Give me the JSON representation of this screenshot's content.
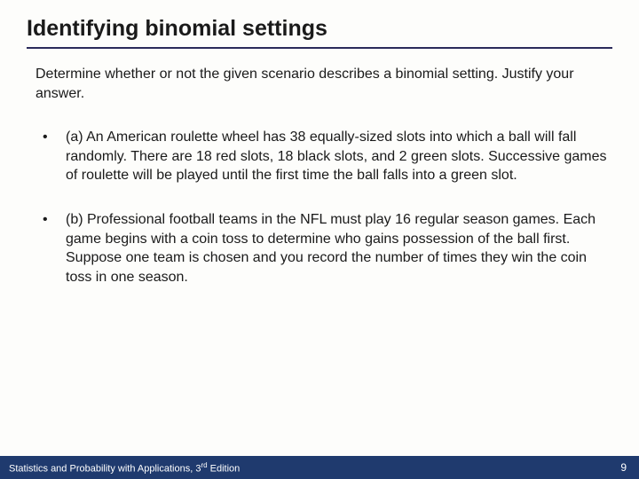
{
  "colors": {
    "title_underline": "#2a2a5a",
    "text": "#1a1a1a",
    "footer_bg": "#1f3a6e",
    "footer_text": "#ffffff",
    "page_bg": "#fdfdfb"
  },
  "typography": {
    "title_fontsize": 25,
    "title_weight": "bold",
    "body_fontsize": 16,
    "footer_fontsize": 11,
    "font_family": "Arial"
  },
  "title": "Identifying binomial settings",
  "intro": "Determine whether or not the given scenario describes a binomial setting. Justify your answer.",
  "bullets": [
    "(a) An American roulette wheel has 38 equally-sized slots into which a ball will fall randomly. There are 18 red slots, 18 black slots, and 2 green slots. Successive games of roulette will be played until the first time the ball falls into a green slot.",
    "(b) Professional football teams in the NFL must play 16 regular season games. Each game begins with a coin toss to determine who gains possession of the ball first. Suppose one team is chosen and you record the number of times they win the coin toss in one season."
  ],
  "footer": {
    "book_prefix": "Statistics and Probability with Applications, 3",
    "book_suffix": " Edition",
    "ordinal": "rd",
    "page": "9"
  }
}
